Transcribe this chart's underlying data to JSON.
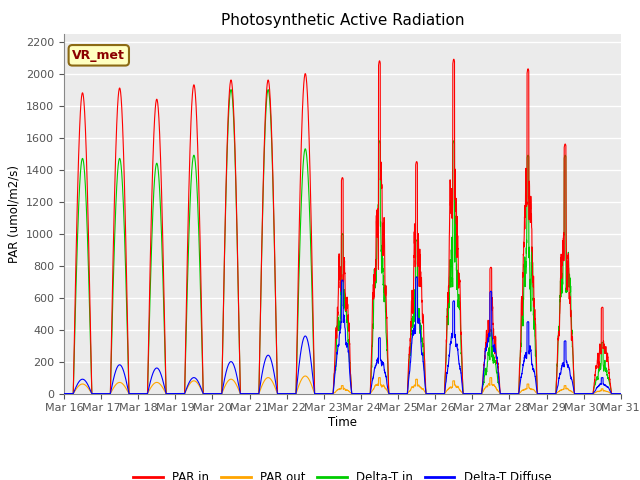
{
  "title": "Photosynthetic Active Radiation",
  "ylabel": "PAR (umol/m2/s)",
  "xlabel": "Time",
  "ylim": [
    0,
    2250
  ],
  "yticks": [
    0,
    200,
    400,
    600,
    800,
    1000,
    1200,
    1400,
    1600,
    1800,
    2000,
    2200
  ],
  "date_start": 16,
  "date_end": 31,
  "annotation_text": "VR_met",
  "annotation_bbox": {
    "boxstyle": "round,pad=0.3",
    "facecolor": "#FFFFC0",
    "edgecolor": "#8B6914"
  },
  "colors": {
    "PAR_in": "#FF0000",
    "PAR_out": "#FFA500",
    "Delta_T_in": "#00CC00",
    "Delta_T_Diffuse": "#0000FF"
  },
  "legend_labels": [
    "PAR in",
    "PAR out",
    "Delta-T in",
    "Delta-T Diffuse"
  ],
  "background_color": "#EBEBEB",
  "grid_color": "#FFFFFF",
  "fig_bg": "#FFFFFF",
  "day_peaks": {
    "16": {
      "PAR_in": 1880,
      "PAR_out": 60,
      "Delta_T_in": 1470,
      "Delta_T_Diffuse": 90
    },
    "17": {
      "PAR_in": 1910,
      "PAR_out": 70,
      "Delta_T_in": 1470,
      "Delta_T_Diffuse": 180
    },
    "18": {
      "PAR_in": 1840,
      "PAR_out": 70,
      "Delta_T_in": 1440,
      "Delta_T_Diffuse": 160
    },
    "19": {
      "PAR_in": 1930,
      "PAR_out": 80,
      "Delta_T_in": 1490,
      "Delta_T_Diffuse": 100
    },
    "20": {
      "PAR_in": 1960,
      "PAR_out": 90,
      "Delta_T_in": 1900,
      "Delta_T_Diffuse": 200
    },
    "21": {
      "PAR_in": 1960,
      "PAR_out": 100,
      "Delta_T_in": 1900,
      "Delta_T_Diffuse": 240
    },
    "22": {
      "PAR_in": 2000,
      "PAR_out": 110,
      "Delta_T_in": 1530,
      "Delta_T_Diffuse": 360
    },
    "23": {
      "PAR_in": 1350,
      "PAR_out": 50,
      "Delta_T_in": 1000,
      "Delta_T_Diffuse": 710
    },
    "24": {
      "PAR_in": 2080,
      "PAR_out": 100,
      "Delta_T_in": 1580,
      "Delta_T_Diffuse": 350
    },
    "25": {
      "PAR_in": 1450,
      "PAR_out": 90,
      "Delta_T_in": 960,
      "Delta_T_Diffuse": 730
    },
    "26": {
      "PAR_in": 2090,
      "PAR_out": 80,
      "Delta_T_in": 1580,
      "Delta_T_Diffuse": 580
    },
    "27": {
      "PAR_in": 790,
      "PAR_out": 100,
      "Delta_T_in": 400,
      "Delta_T_Diffuse": 640
    },
    "28": {
      "PAR_in": 2030,
      "PAR_out": 60,
      "Delta_T_in": 1490,
      "Delta_T_Diffuse": 450
    },
    "29": {
      "PAR_in": 1560,
      "PAR_out": 50,
      "Delta_T_in": 1490,
      "Delta_T_Diffuse": 330
    },
    "30": {
      "PAR_in": 540,
      "PAR_out": 30,
      "Delta_T_in": 320,
      "Delta_T_Diffuse": 100
    }
  },
  "cloudy_days": [
    "23",
    "24",
    "25",
    "26",
    "27",
    "28",
    "29",
    "30"
  ]
}
